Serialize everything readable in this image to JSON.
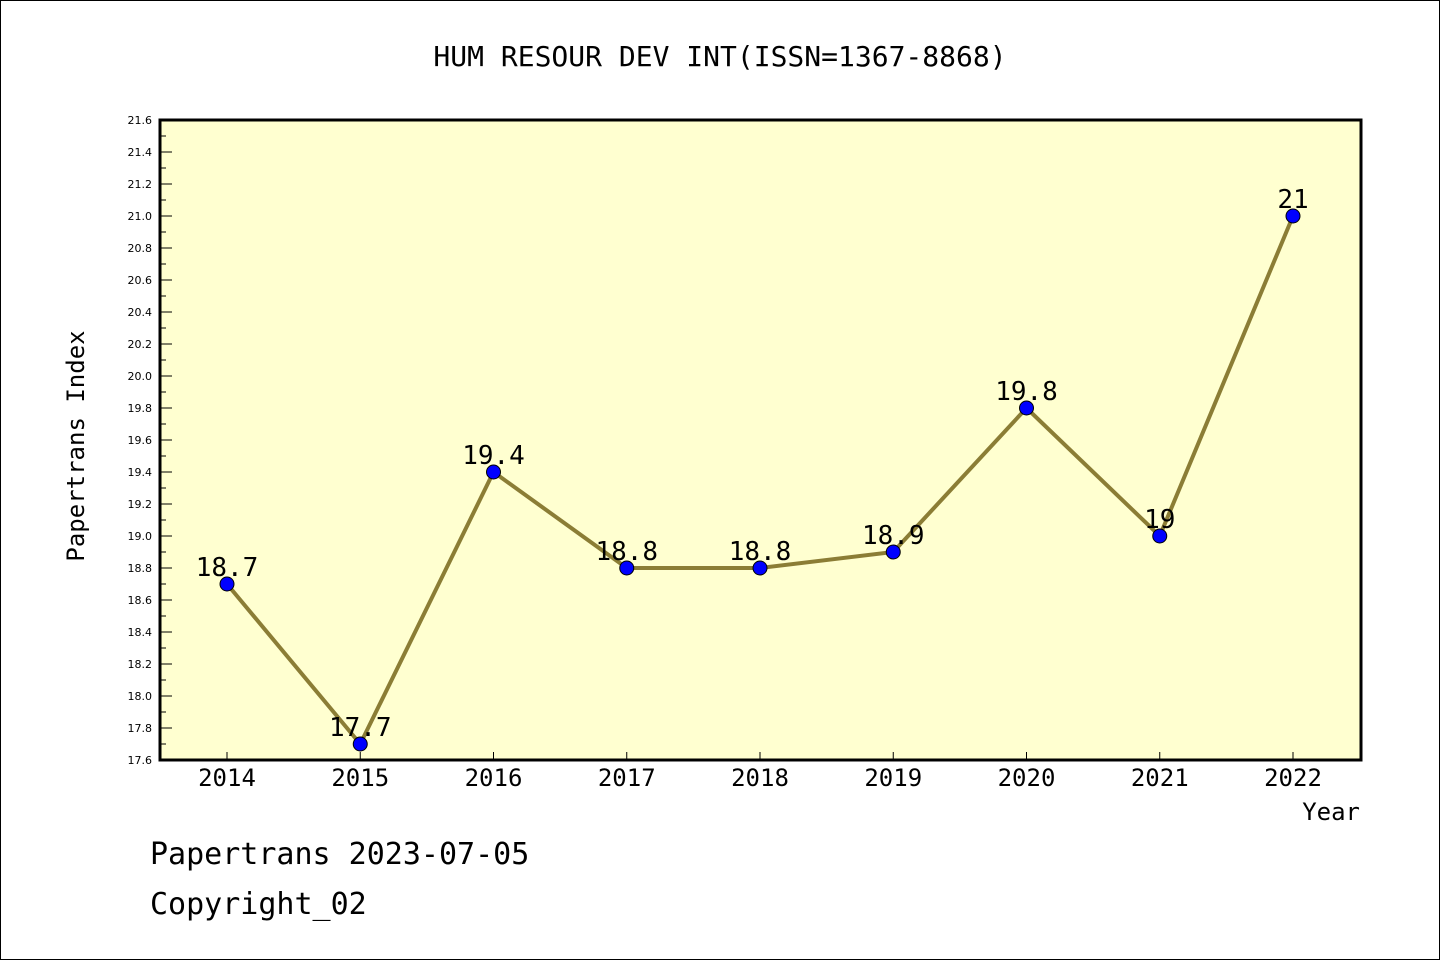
{
  "chart_data": {
    "type": "line",
    "title": "HUM RESOUR DEV INT(ISSN=1367-8868)",
    "xlabel": "Year",
    "ylabel": "Papertrans Index",
    "categories": [
      "2014",
      "2015",
      "2016",
      "2017",
      "2018",
      "2019",
      "2020",
      "2021",
      "2022"
    ],
    "values": [
      18.7,
      17.7,
      19.4,
      18.8,
      18.8,
      18.9,
      19.8,
      19,
      21
    ],
    "data_labels": [
      "18.7",
      "17.7",
      "19.4",
      "18.8",
      "18.8",
      "18.9",
      "19.8",
      "19",
      "21"
    ],
    "ylim": [
      17.6,
      21.6
    ],
    "yticks": [
      "17.6",
      "17.8",
      "18.0",
      "18.2",
      "18.4",
      "18.6",
      "18.8",
      "19.0",
      "19.2",
      "19.4",
      "19.6",
      "19.8",
      "20.0",
      "20.2",
      "20.4",
      "20.6",
      "20.8",
      "21.0",
      "21.2",
      "21.4",
      "21.6"
    ],
    "grid": false,
    "colors": {
      "plot_background": "#ffffd0",
      "line": "#8b7d35",
      "marker": "#0000ff"
    }
  },
  "footer": {
    "line1": "Papertrans 2023-07-05",
    "line2": "Copyright_02"
  }
}
